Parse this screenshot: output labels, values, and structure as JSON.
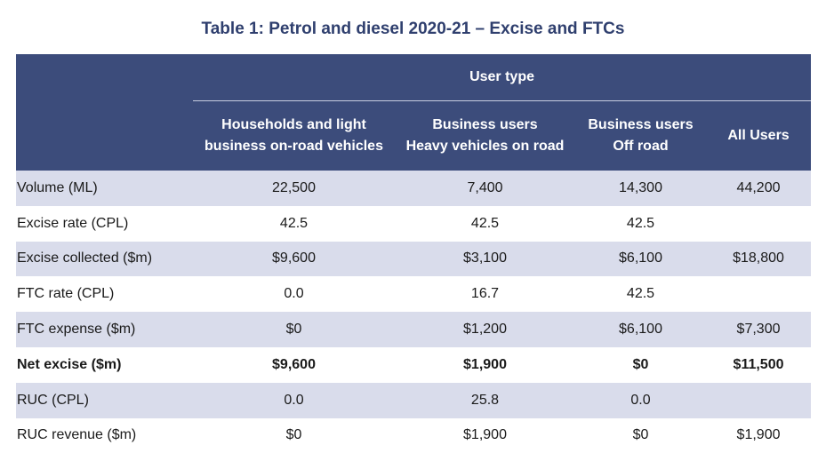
{
  "title": "Table 1: Petrol and diesel 2020-21 – Excise and FTCs",
  "header": {
    "group_label": "User type",
    "columns": [
      {
        "line1": "Households and light",
        "line2": "business on-road vehicles"
      },
      {
        "line1": "Business users",
        "line2": "Heavy vehicles on road"
      },
      {
        "line1": "Business users",
        "line2": "Off road"
      },
      {
        "line1": "All Users",
        "line2": ""
      }
    ]
  },
  "rows": [
    {
      "label": "Volume (ML)",
      "values": [
        "22,500",
        "7,400",
        "14,300",
        "44,200"
      ]
    },
    {
      "label": "Excise rate (CPL)",
      "values": [
        "42.5",
        "42.5",
        "42.5",
        ""
      ]
    },
    {
      "label": "Excise collected ($m)",
      "values": [
        "$9,600",
        "$3,100",
        "$6,100",
        "$18,800"
      ]
    },
    {
      "label": "FTC rate (CPL)",
      "values": [
        "0.0",
        "16.7",
        "42.5",
        ""
      ]
    },
    {
      "label": "FTC expense ($m)",
      "values": [
        "$0",
        "$1,200",
        "$6,100",
        "$7,300"
      ]
    },
    {
      "label": "Net excise ($m)",
      "values": [
        "$9,600",
        "$1,900",
        "$0",
        "$11,500"
      ]
    },
    {
      "label": "RUC (CPL)",
      "values": [
        "0.0",
        "25.8",
        "0.0",
        ""
      ]
    },
    {
      "label": "RUC revenue ($m)",
      "values": [
        "$0",
        "$1,900",
        "$0",
        "$1,900"
      ]
    }
  ]
}
